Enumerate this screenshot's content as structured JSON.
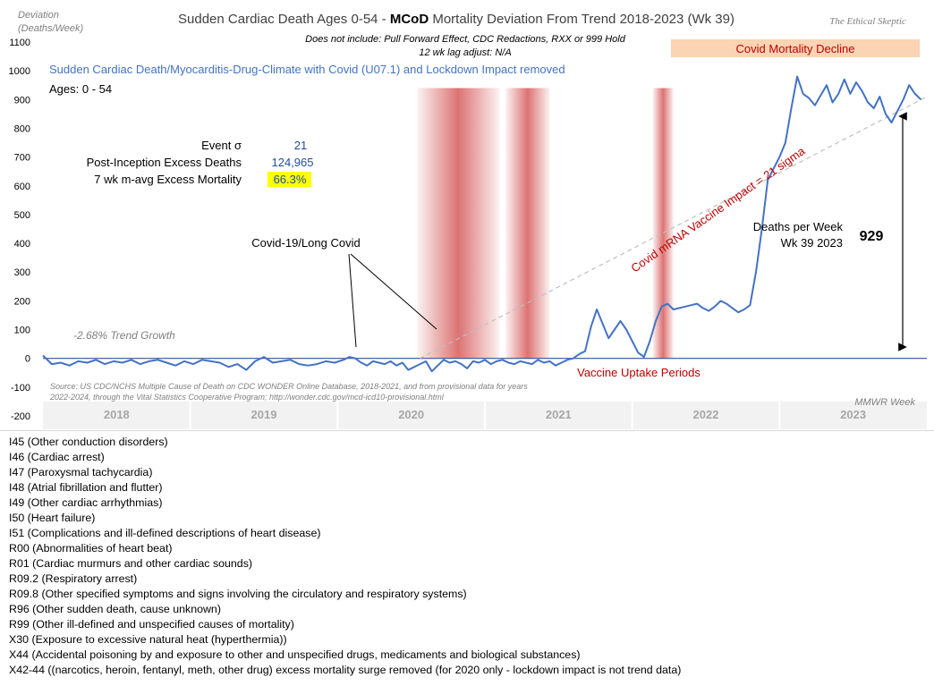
{
  "chart_data": {
    "type": "line",
    "title_prefix": "Sudden Cardiac Death Ages 0-54 - ",
    "title_bold": "MCoD",
    "title_suffix": " Mortality Deviation From Trend  2018-2023 (Wk 39)",
    "brand": "The Ethical Skeptic",
    "subtitle_1": "Does not include: Pull Forward Effect,  CDC Redactions, RXX or 999 Hold",
    "subtitle_2": "12 wk lag adjust: N/A",
    "ylabel_1": "Deviation",
    "ylabel_2": "(Deaths/Week)",
    "series_name": "Sudden Cardiac Death/Myocarditis-Drug-Climate with Covid (U07.1) and Lockdown Impact removed",
    "age_label": "Ages: 0 - 54",
    "ylim": [
      -200,
      1100
    ],
    "yticks": [
      "-200",
      "-100",
      "0",
      "100",
      "200",
      "300",
      "400",
      "500",
      "600",
      "700",
      "800",
      "900",
      "1000",
      "1100"
    ],
    "xlim": [
      0,
      300
    ],
    "years": [
      "2018",
      "2019",
      "2020",
      "2021",
      "2022",
      "2023"
    ],
    "xlabel": "MMWR Week",
    "stats": [
      {
        "label": "Event σ",
        "value": "21",
        "highlight": false
      },
      {
        "label": "Post-Inception Excess Deaths",
        "value": "124,965",
        "highlight": false
      },
      {
        "label": "7 wk m-avg Excess Mortality",
        "value": "66.3%",
        "highlight": true
      }
    ],
    "annotations": {
      "covid_label": "Covid-19/Long Covid",
      "trend_growth": "-2.68% Trend Growth",
      "vaccine_impact": "Covid mRNA Vaccine Impact = 21 sigma",
      "deaths_week_1": "Deaths per Week",
      "deaths_week_2": "Wk 39 2023",
      "deaths_value": "929",
      "vaccine_uptake": "Vaccine Uptake Periods",
      "covid_decline": "Covid Mortality Decline",
      "source_1": "Source: US CDC/NCHS Multiple Cause of Death on CDC WONDER Online Database, 2018-2021, and from provisional data for years",
      "source_2": "2022-2024, through the Vital Statistics Cooperative Program; http://wonder.cdc.gov/mcd-icd10-provisional.html"
    },
    "trend_line": {
      "x": [
        128,
        300
      ],
      "y": [
        0,
        910
      ]
    },
    "vaccine_periods": [
      [
        127,
        155
      ],
      [
        157,
        172
      ],
      [
        207,
        214
      ]
    ],
    "series": [
      {
        "color": "#4472c4",
        "x": [
          0,
          3,
          6,
          9,
          12,
          15,
          18,
          21,
          24,
          27,
          30,
          33,
          36,
          39,
          42,
          45,
          48,
          51,
          54,
          57,
          60,
          63,
          66,
          69,
          72,
          75,
          78,
          81,
          84,
          87,
          90,
          93,
          96,
          99,
          102,
          104,
          106,
          108,
          110,
          112,
          114,
          116,
          118,
          120,
          122,
          124,
          126,
          128,
          130,
          132,
          134,
          136,
          138,
          140,
          142,
          144,
          146,
          148,
          150,
          152,
          154,
          156,
          158,
          160,
          162,
          164,
          166,
          168,
          170,
          172,
          174,
          176,
          178,
          180,
          182,
          184,
          186,
          188,
          190,
          192,
          194,
          196,
          198,
          200,
          202,
          204,
          206,
          208,
          210,
          212,
          214,
          216,
          218,
          220,
          222,
          224,
          226,
          228,
          230,
          232,
          234,
          236,
          238,
          240,
          242,
          244,
          246,
          248,
          250,
          252,
          254,
          256,
          258,
          260,
          262,
          264,
          266,
          268,
          270,
          272,
          274,
          276,
          278,
          280,
          282,
          284,
          286,
          288,
          290,
          292,
          294,
          296,
          298
        ],
        "y": [
          10,
          -20,
          -15,
          -25,
          -10,
          -15,
          -5,
          -20,
          -10,
          -15,
          -5,
          -20,
          -10,
          -5,
          -15,
          -25,
          -10,
          -20,
          -5,
          -10,
          -15,
          -30,
          -20,
          -40,
          -10,
          5,
          -15,
          -10,
          -5,
          -20,
          -25,
          -20,
          -10,
          -15,
          -5,
          5,
          0,
          -15,
          -25,
          -10,
          -15,
          -20,
          -10,
          -25,
          -15,
          -40,
          -30,
          -20,
          -10,
          -45,
          -25,
          -5,
          -15,
          -10,
          -20,
          -35,
          -10,
          -15,
          -5,
          -20,
          -10,
          -5,
          -15,
          -20,
          -10,
          -15,
          -20,
          -5,
          -15,
          -10,
          -25,
          -15,
          -5,
          0,
          15,
          25,
          110,
          170,
          120,
          70,
          100,
          130,
          100,
          60,
          20,
          5,
          60,
          130,
          180,
          190,
          170,
          175,
          180,
          185,
          190,
          175,
          165,
          180,
          200,
          190,
          175,
          160,
          170,
          185,
          300,
          450,
          620,
          660,
          700,
          750,
          870,
          980,
          920,
          905,
          880,
          915,
          950,
          890,
          920,
          970,
          920,
          960,
          930,
          890,
          870,
          910,
          850,
          820,
          860,
          900,
          950,
          920,
          900
        ]
      }
    ]
  },
  "icd_codes": [
    "I45 (Other conduction  disorders)",
    "I46 (Cardiac arrest)",
    "I47 (Paroxysmal tachycardia)",
    "I48 (Atrial fibrillation  and flutter)",
    "I49 (Other cardiac arrhythmias)",
    "I50 (Heart failure)",
    "I51 (Complications  and ill-defined  descriptions of heart disease)",
    "R00 (Abnormalities of heart beat)",
    "R01 (Cardiac murmurs and other cardiac sounds)",
    "R09.2 (Respiratory arrest)",
    "R09.8 (Other specified  symptoms and signs involving  the circulatory and respiratory systems)",
    "R96 (Other sudden death, cause unknown)",
    "R99 (Other ill-defined  and unspecified  causes of mortality)",
    "X30 (Exposure to excessive natural heat (hyperthermia))",
    "X44 (Accidental poisoning  by and exposure to other and unspecified  drugs, medicaments and biological substances)",
    "X42-44 ((narcotics, heroin, fentanyl, meth, other drug) excess mortality surge removed (for 2020 only - lockdown impact is not trend data)"
  ],
  "colors": {
    "line": "#4472c4",
    "vaccine_band": "#c00000",
    "decline_box": "#fbd4b4",
    "red_text": "#c00000",
    "highlight": "#ffff00",
    "year_band": "#f2f2f2"
  }
}
